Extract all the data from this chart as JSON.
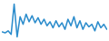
{
  "values": [
    30,
    28,
    32,
    25,
    85,
    20,
    60,
    45,
    65,
    50,
    62,
    48,
    58,
    45,
    55,
    42,
    50,
    38,
    52,
    40,
    48,
    35,
    55,
    42,
    60,
    38,
    52,
    35,
    48,
    40,
    45,
    32,
    50,
    38,
    45,
    35
  ],
  "line_color": "#2b8ccc",
  "line_width": 1.1,
  "background_color": "#ffffff"
}
